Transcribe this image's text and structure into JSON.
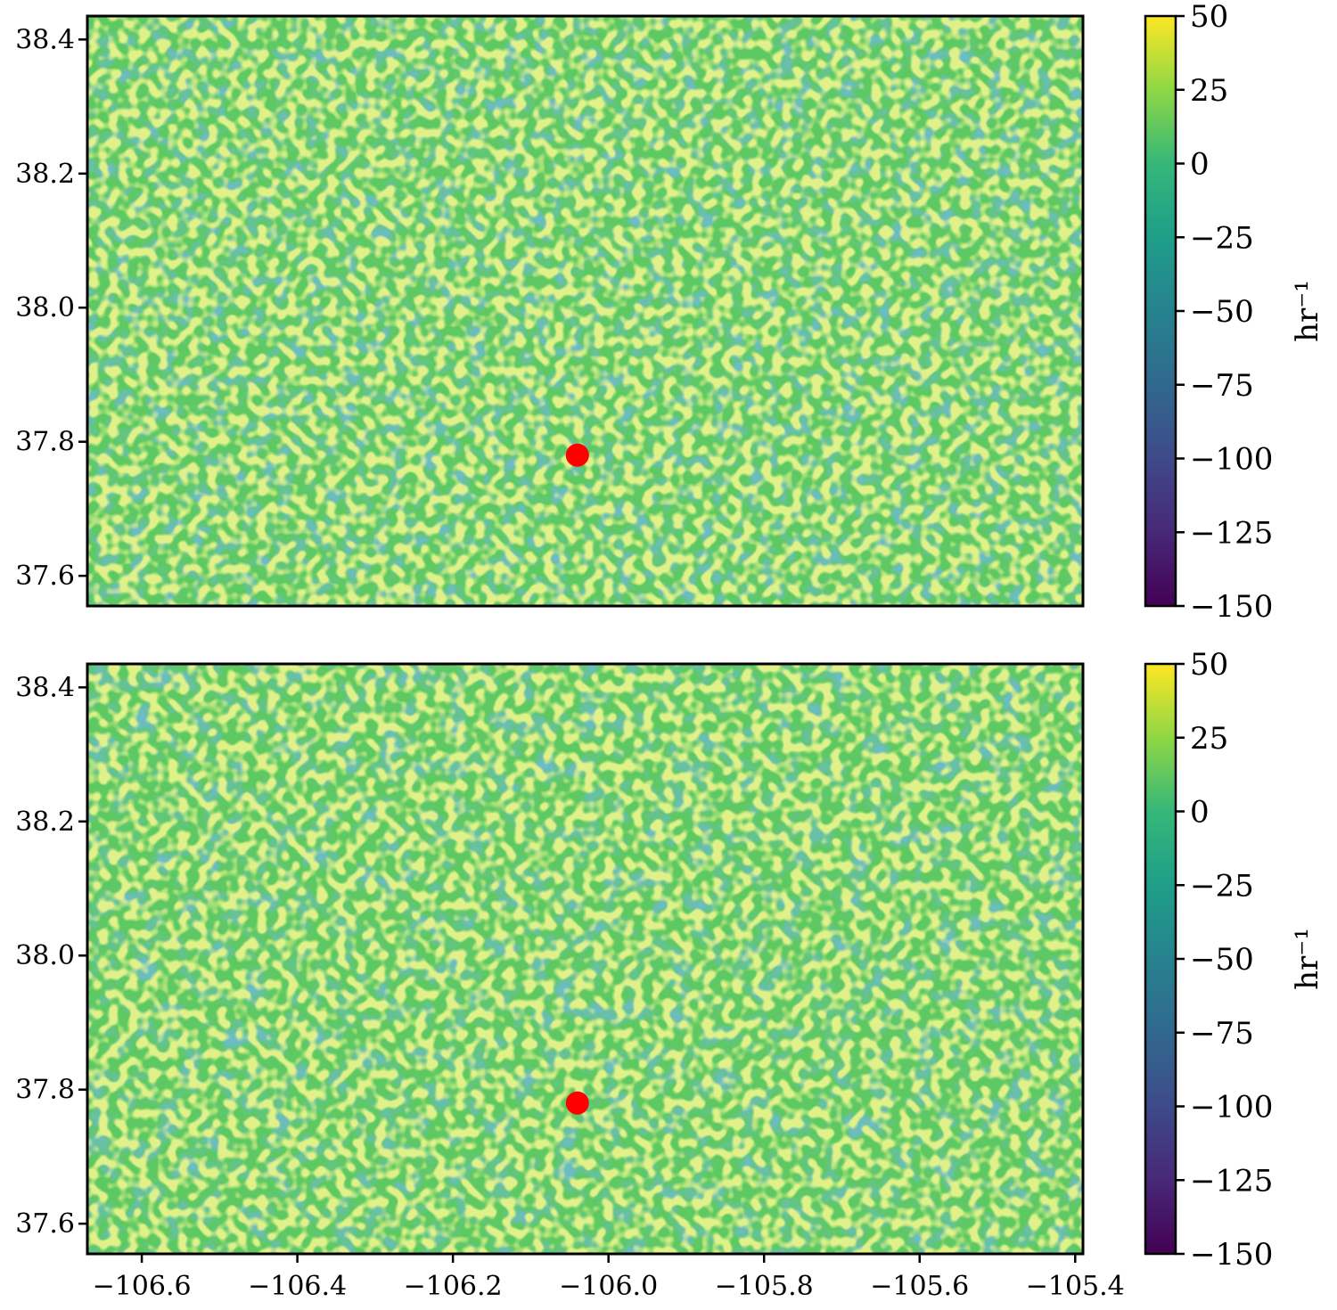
{
  "chart_data": [
    {
      "type": "heatmap",
      "panel": "top",
      "title": "",
      "xlabel": "",
      "ylabel": "",
      "xlim": [
        -106.67,
        -105.39
      ],
      "ylim": [
        37.555,
        38.435
      ],
      "x_ticks": [],
      "y_ticks": [
        {
          "v": 38.4,
          "label": "38.4"
        },
        {
          "v": 38.2,
          "label": "38.2"
        },
        {
          "v": 38.0,
          "label": "38.0"
        },
        {
          "v": 37.8,
          "label": "37.8"
        },
        {
          "v": 37.6,
          "label": "37.6"
        }
      ],
      "marker": {
        "x": -106.04,
        "y": 37.78,
        "color": "#ff0000"
      },
      "colorbar": {
        "label": "hr⁻¹",
        "colormap": "viridis",
        "range": [
          -150,
          50
        ],
        "ticks": [
          {
            "v": 50,
            "label": "50"
          },
          {
            "v": 25,
            "label": "25"
          },
          {
            "v": 0,
            "label": "0"
          },
          {
            "v": -25,
            "label": "−25"
          },
          {
            "v": -50,
            "label": "−50"
          },
          {
            "v": -75,
            "label": "−75"
          },
          {
            "v": -100,
            "label": "−100"
          },
          {
            "v": -125,
            "label": "−125"
          },
          {
            "v": -150,
            "label": "−150"
          }
        ]
      },
      "field_base_color": "#5ec962"
    },
    {
      "type": "heatmap",
      "panel": "bottom",
      "title": "",
      "xlabel": "",
      "ylabel": "",
      "xlim": [
        -106.67,
        -105.39
      ],
      "ylim": [
        37.555,
        38.435
      ],
      "x_ticks": [
        {
          "v": -106.6,
          "label": "−106.6"
        },
        {
          "v": -106.4,
          "label": "−106.4"
        },
        {
          "v": -106.2,
          "label": "−106.2"
        },
        {
          "v": -106.0,
          "label": "−106.0"
        },
        {
          "v": -105.8,
          "label": "−105.8"
        },
        {
          "v": -105.6,
          "label": "−105.6"
        },
        {
          "v": -105.4,
          "label": "−105.4"
        }
      ],
      "y_ticks": [
        {
          "v": 38.4,
          "label": "38.4"
        },
        {
          "v": 38.2,
          "label": "38.2"
        },
        {
          "v": 38.0,
          "label": "38.0"
        },
        {
          "v": 37.8,
          "label": "37.8"
        },
        {
          "v": 37.6,
          "label": "37.6"
        }
      ],
      "marker": {
        "x": -106.04,
        "y": 37.78,
        "color": "#ff0000"
      },
      "colorbar": {
        "label": "hr⁻¹",
        "colormap": "viridis",
        "range": [
          -150,
          50
        ],
        "ticks": [
          {
            "v": 50,
            "label": "50"
          },
          {
            "v": 25,
            "label": "25"
          },
          {
            "v": 0,
            "label": "0"
          },
          {
            "v": -25,
            "label": "−25"
          },
          {
            "v": -50,
            "label": "−50"
          },
          {
            "v": -75,
            "label": "−75"
          },
          {
            "v": -100,
            "label": "−100"
          },
          {
            "v": -125,
            "label": "−125"
          },
          {
            "v": -150,
            "label": "−150"
          }
        ]
      },
      "field_base_color": "#5ec962"
    }
  ]
}
